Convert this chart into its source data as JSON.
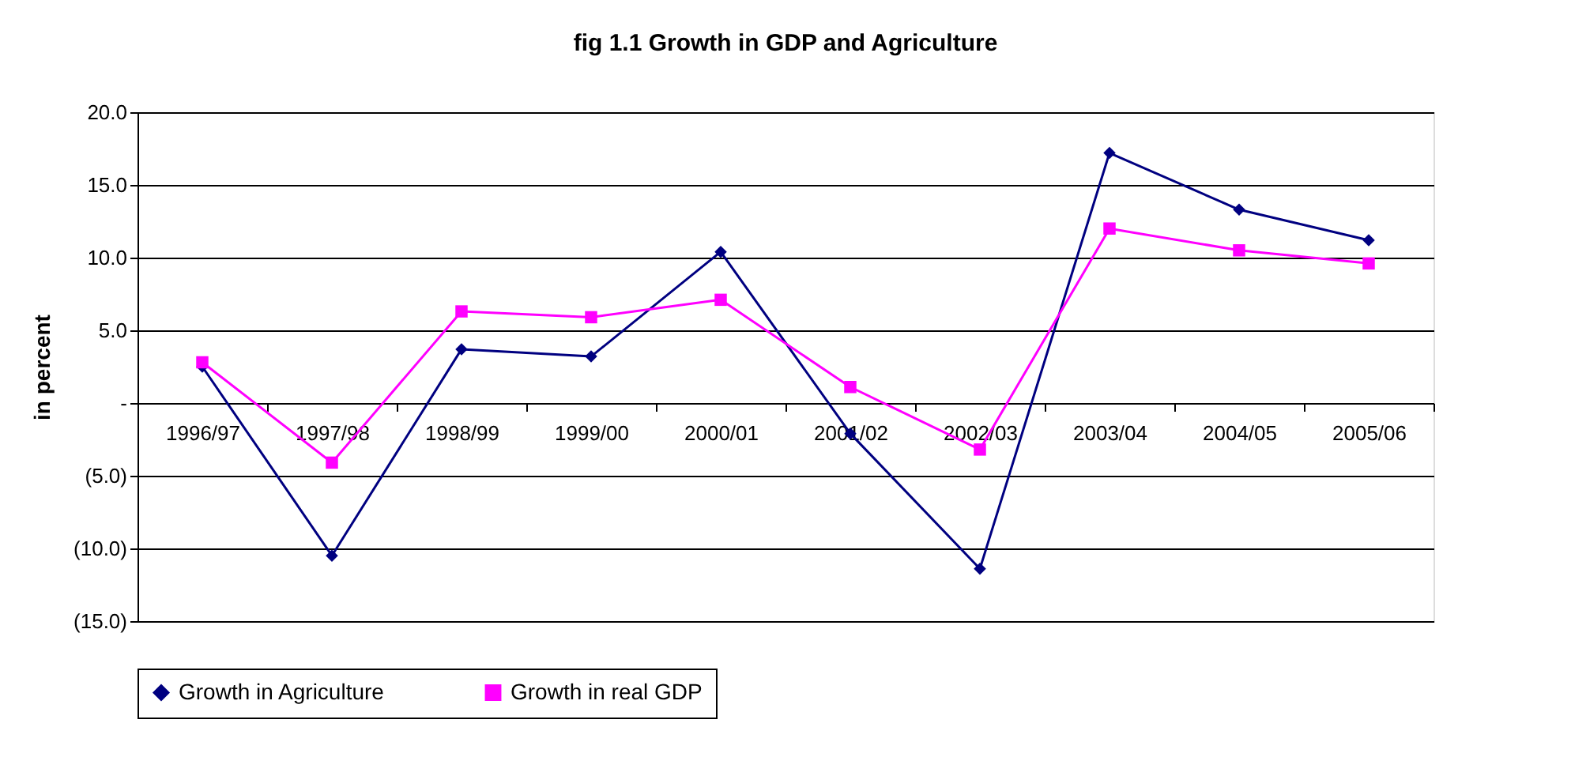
{
  "chart_data": {
    "type": "line",
    "title": "fig 1.1 Growth in GDP and Agriculture",
    "ylabel": "in percent",
    "categories": [
      "1996/97",
      "1997/98",
      "1998/99",
      "1999/00",
      "2000/01",
      "2001/02",
      "2002/03",
      "2003/04",
      "2004/05",
      "2005/06"
    ],
    "series": [
      {
        "name": "Growth in Agriculture",
        "color": "#000080",
        "marker": "diamond",
        "values": [
          2.5,
          -10.5,
          3.7,
          3.2,
          10.4,
          -2.1,
          -11.4,
          17.2,
          13.3,
          11.2
        ]
      },
      {
        "name": "Growth in real GDP",
        "color": "#ff00ff",
        "marker": "square",
        "values": [
          2.8,
          -4.1,
          6.3,
          5.9,
          7.1,
          1.1,
          -3.2,
          12.0,
          10.5,
          9.6
        ]
      }
    ],
    "ylim": [
      -15,
      20
    ],
    "yticks": [
      {
        "value": -15,
        "label": "(15.0)"
      },
      {
        "value": -10,
        "label": "(10.0)"
      },
      {
        "value": -5,
        "label": "(5.0)"
      },
      {
        "value": 0,
        "label": "-"
      },
      {
        "value": 5,
        "label": "5.0"
      },
      {
        "value": 10,
        "label": "10.0"
      },
      {
        "value": 15,
        "label": "15.0"
      },
      {
        "value": 20,
        "label": "20.0"
      }
    ],
    "grid": "y",
    "legend": "bottom",
    "line_style": "solid"
  }
}
